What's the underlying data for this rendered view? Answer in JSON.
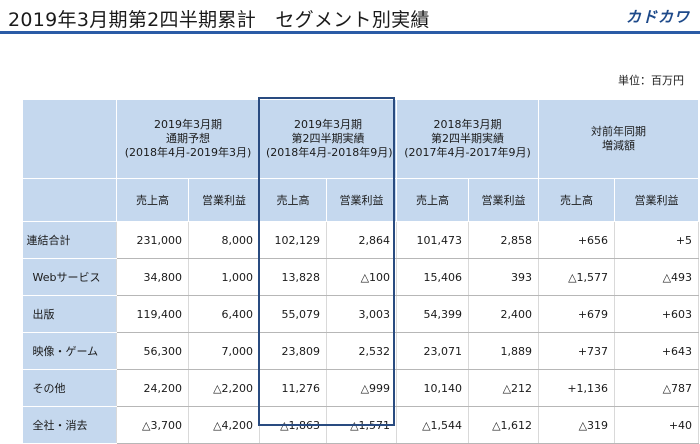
{
  "header": {
    "title": "2019年3月期第2四半期累計　セグメント別実績",
    "logo": "カドカワ"
  },
  "unit_label": "単位：百万円",
  "table": {
    "period_headers": [
      {
        "line1": "2019年3月期",
        "line2": "通期予想",
        "line3": "(2018年4月-2019年3月)"
      },
      {
        "line1": "2019年3月期",
        "line2": "第2四半期実績",
        "line3": "(2018年4月-2018年9月)"
      },
      {
        "line1": "2018年3月期",
        "line2": "第2四半期実績",
        "line3": "(2017年4月-2017年9月)"
      },
      {
        "line1": "対前年同期",
        "line2": "増減額",
        "line3": ""
      }
    ],
    "metric_headers": [
      "売上高",
      "営業利益",
      "売上高",
      "営業利益",
      "売上高",
      "営業利益",
      "売上高",
      "営業利益"
    ],
    "rows": [
      {
        "label": "連結合計",
        "values": [
          "231,000",
          "8,000",
          "102,129",
          "2,864",
          "101,473",
          "2,858",
          "+656",
          "+5"
        ]
      },
      {
        "label": "Webサービス",
        "values": [
          "34,800",
          "1,000",
          "13,828",
          "△100",
          "15,406",
          "393",
          "△1,577",
          "△493"
        ]
      },
      {
        "label": "出版",
        "values": [
          "119,400",
          "6,400",
          "55,079",
          "3,003",
          "54,399",
          "2,400",
          "+679",
          "+603"
        ]
      },
      {
        "label": "映像・ゲーム",
        "values": [
          "56,300",
          "7,000",
          "23,809",
          "2,532",
          "23,071",
          "1,889",
          "+737",
          "+643"
        ]
      },
      {
        "label": "その他",
        "values": [
          "24,200",
          "△2,200",
          "11,276",
          "△999",
          "10,140",
          "△212",
          "+1,136",
          "△787"
        ]
      },
      {
        "label": "全社・消去",
        "values": [
          "△3,700",
          "△4,200",
          "△1,863",
          "△1,571",
          "△1,544",
          "△1,612",
          "△319",
          "+40"
        ]
      }
    ]
  }
}
